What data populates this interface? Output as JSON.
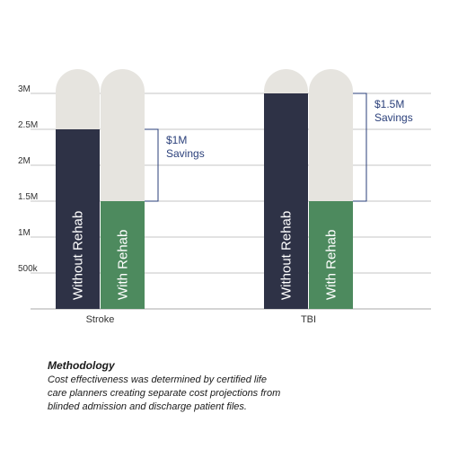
{
  "chart_data": {
    "type": "bar",
    "categories": [
      "Stroke",
      "TBI"
    ],
    "series": [
      {
        "name": "Without Rehab",
        "values": [
          2500000,
          3000000
        ],
        "color": "#2e3246"
      },
      {
        "name": "With Rehab",
        "values": [
          1500000,
          1500000
        ],
        "color": "#4d8a5e"
      }
    ],
    "y_tick_labels": [
      {
        "value": 500000,
        "label": "500k"
      },
      {
        "value": 1000000,
        "label": "1M"
      },
      {
        "value": 1500000,
        "label": "1.5M"
      },
      {
        "value": 2000000,
        "label": "2M"
      },
      {
        "value": 2500000,
        "label": "2.5M"
      },
      {
        "value": 3000000,
        "label": "3M"
      }
    ],
    "ylim": [
      0,
      3000000
    ],
    "grid": true,
    "background_column_color": "#e6e4df",
    "annotations": [
      {
        "category": "Stroke",
        "lines": [
          "$1M",
          "Savings"
        ]
      },
      {
        "category": "TBI",
        "lines": [
          "$1.5M",
          "Savings"
        ]
      }
    ],
    "annotation_color": "#2a3f7a"
  },
  "methodology": {
    "title": "Methodology",
    "lines": [
      "Cost effectiveness was determined by certified life",
      "care planners creating separate cost projections from",
      "blinded admission and discharge patient files."
    ]
  }
}
